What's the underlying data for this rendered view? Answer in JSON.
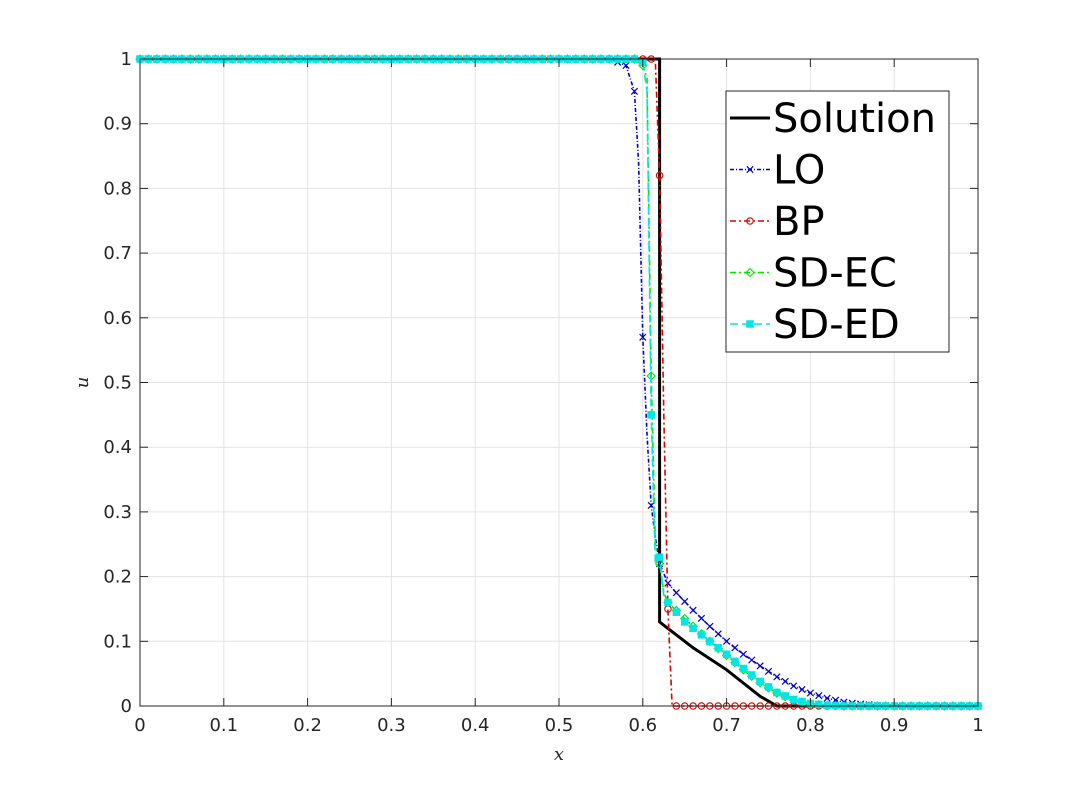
{
  "chart_data": {
    "type": "line",
    "title": "",
    "xlabel": "x",
    "ylabel": "u",
    "xlim": [
      0,
      1
    ],
    "ylim": [
      0,
      1
    ],
    "xticks": [
      "0",
      "0.1",
      "0.2",
      "0.3",
      "0.4",
      "0.5",
      "0.6",
      "0.7",
      "0.8",
      "0.9",
      "1"
    ],
    "yticks": [
      "0",
      "0.1",
      "0.2",
      "0.3",
      "0.4",
      "0.5",
      "0.6",
      "0.7",
      "0.8",
      "0.9",
      "1"
    ],
    "grid": true,
    "legend_position": "top-right",
    "series": [
      {
        "name": "Solution",
        "color": "#000000",
        "dash": "solid",
        "marker": "none",
        "x": [
          0,
          0.62,
          0.62,
          0.62,
          0.63,
          0.66,
          0.7,
          0.74,
          0.76,
          0.78,
          1.0
        ],
        "y": [
          1,
          1,
          0.3,
          0.13,
          0.12,
          0.09,
          0.056,
          0.015,
          0,
          0,
          0
        ]
      },
      {
        "name": "LO",
        "color": "#0000cc",
        "dash": "4,2,1,2",
        "marker": "x",
        "x": [
          0,
          0.56,
          0.58,
          0.59,
          0.595,
          0.6,
          0.605,
          0.61,
          0.615,
          0.62,
          0.63,
          0.64,
          0.66,
          0.68,
          0.7,
          0.72,
          0.74,
          0.76,
          0.78,
          0.8,
          0.82,
          0.84,
          0.86,
          0.88,
          0.9,
          1.0
        ],
        "y": [
          1,
          1,
          0.99,
          0.95,
          0.84,
          0.57,
          0.42,
          0.31,
          0.26,
          0.22,
          0.19,
          0.175,
          0.148,
          0.123,
          0.1,
          0.08,
          0.062,
          0.045,
          0.031,
          0.02,
          0.012,
          0.006,
          0.003,
          0.001,
          0,
          0
        ]
      },
      {
        "name": "BP",
        "color": "#dd0000",
        "dash": "6,3,2,3",
        "marker": "circle",
        "x": [
          0,
          0.6,
          0.61,
          0.615,
          0.62,
          0.625,
          0.63,
          0.635,
          0.64,
          0.66,
          0.7,
          0.75,
          0.8,
          1.0
        ],
        "y": [
          1,
          1,
          1.0,
          0.995,
          0.82,
          0.45,
          0.15,
          0.0,
          0.0,
          0.0,
          0.0,
          0.0,
          0.0,
          0.0
        ],
        "marker_step": 0.01
      },
      {
        "name": "SD-EC",
        "color": "#00e600",
        "dash": "6,3,2,3",
        "marker": "diamond",
        "x": [
          0,
          0.59,
          0.6,
          0.605,
          0.61,
          0.615,
          0.62,
          0.625,
          0.63,
          0.65,
          0.68,
          0.7,
          0.72,
          0.74,
          0.76,
          0.78,
          0.8,
          0.82,
          0.84,
          1.0
        ],
        "y": [
          1,
          1,
          0.99,
          0.97,
          0.51,
          0.25,
          0.22,
          0.175,
          0.16,
          0.135,
          0.1,
          0.078,
          0.056,
          0.036,
          0.02,
          0.009,
          0.003,
          0.001,
          0,
          0
        ]
      },
      {
        "name": "SD-ED",
        "color": "#00e5e5",
        "dash": "8,4",
        "marker": "square",
        "x": [
          0,
          0.59,
          0.6,
          0.605,
          0.61,
          0.615,
          0.62,
          0.625,
          0.63,
          0.65,
          0.68,
          0.7,
          0.72,
          0.74,
          0.76,
          0.78,
          0.8,
          0.82,
          0.84,
          1.0
        ],
        "y": [
          1,
          1,
          0.995,
          0.95,
          0.45,
          0.22,
          0.23,
          0.17,
          0.16,
          0.13,
          0.1,
          0.08,
          0.058,
          0.038,
          0.021,
          0.01,
          0.004,
          0.001,
          0,
          0
        ]
      }
    ]
  }
}
